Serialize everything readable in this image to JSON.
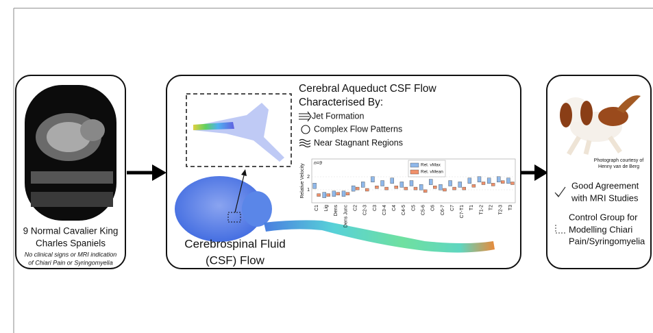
{
  "left_panel": {
    "lines": [
      "9 Normal Cavalier King",
      "Charles Spaniels"
    ],
    "note": [
      "No clinical signs or MRI indication",
      "of Chiari Pain or Syringomyelia"
    ]
  },
  "center_panel": {
    "heading": [
      "Cerebral Aqueduct CSF Flow",
      "Characterised By:"
    ],
    "features": [
      "Jet Formation",
      "Complex Flow Patterns",
      "Near Stagnant Regions"
    ],
    "caption": [
      "Cerebrospinal Fluid",
      "(CSF) Flow"
    ]
  },
  "chart_data": {
    "type": "box",
    "annotation": "n=9",
    "y_label": "Relative Velocity",
    "categories": [
      "C1",
      "Lig",
      "Dens",
      "Dens Junc",
      "C2",
      "C2-3",
      "C3",
      "C3-4",
      "C4",
      "C4-5",
      "C5",
      "C5-6",
      "C6",
      "C6-7",
      "C7",
      "C7-T1",
      "T1",
      "T1-2",
      "T2",
      "T2-3",
      "T3"
    ],
    "series": [
      {
        "name": "Rel. vMax",
        "color": "#8fb8ea",
        "values": [
          1.3,
          0.6,
          0.7,
          0.7,
          1.1,
          1.4,
          1.8,
          1.5,
          1.7,
          1.4,
          1.5,
          1.2,
          1.6,
          1.2,
          1.5,
          1.4,
          1.7,
          1.8,
          1.7,
          1.8,
          1.7
        ]
      },
      {
        "name": "Rel. vMean",
        "color": "#f0906a",
        "values": [
          0.6,
          0.6,
          0.7,
          0.7,
          1.1,
          1.0,
          1.2,
          1.1,
          1.2,
          1.1,
          1.1,
          0.9,
          1.2,
          1.0,
          1.1,
          1.1,
          1.3,
          1.5,
          1.4,
          1.6,
          1.5
        ]
      }
    ],
    "ylim": [
      0,
      3
    ],
    "yticks": [
      1,
      2
    ]
  },
  "right_panel": {
    "credit": [
      "Photograph courtesy of",
      "Henny van de Berg"
    ],
    "outcomes": [
      [
        "Good Agreement",
        "with MRI Studies"
      ],
      [
        "Control Group for",
        "Modelling Chiari",
        "Pain/Syringomyelia"
      ]
    ]
  }
}
